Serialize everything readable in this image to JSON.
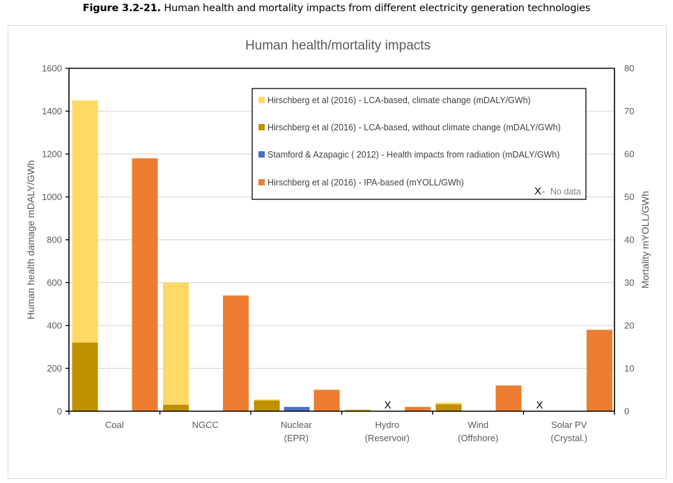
{
  "caption": {
    "bold": "Figure 3.2-21.",
    "text": " Human health and mortality impacts from different electricity generation technologies"
  },
  "chart_data": {
    "type": "bar",
    "title": "Human health/mortality impacts",
    "categories": [
      {
        "line1": "Coal",
        "line2": ""
      },
      {
        "line1": "NGCC",
        "line2": ""
      },
      {
        "line1": "Nuclear",
        "line2": "(EPR)"
      },
      {
        "line1": "Hydro",
        "line2": "(Reservoir)"
      },
      {
        "line1": "Wind",
        "line2": "(Offshore)"
      },
      {
        "line1": "Solar PV",
        "line2": "(Crystal.)"
      }
    ],
    "ylabel_left": "Human health damage mDALY/GWh",
    "ylabel_right": "Mortality mYOLL/GWh",
    "ylim_left": [
      0,
      1600
    ],
    "yticks_left": [
      0,
      200,
      400,
      600,
      800,
      1000,
      1200,
      1400,
      1600
    ],
    "ylim_right": [
      0,
      80
    ],
    "yticks_right": [
      0,
      10,
      20,
      30,
      40,
      50,
      60,
      70,
      80
    ],
    "grid": true,
    "legend_position": "top-right (inside plot)",
    "series": [
      {
        "name": "Hirschberg et al (2016) - LCA-based, climate change (mDALY/GWh)",
        "color": "#FFD966",
        "axis": "left",
        "slot": 0,
        "values": [
          1450,
          600,
          55,
          8,
          40,
          null
        ]
      },
      {
        "name": "Hirschberg et al (2016) - LCA-based, without climate change (mDALY/GWh)",
        "color": "#BF9000",
        "axis": "left",
        "slot": 0,
        "values": [
          320,
          30,
          50,
          5,
          32,
          null
        ]
      },
      {
        "name": "Stamford & Azapagic ( 2012) - Health impacts from radiation (mDALY/GWh)",
        "color": "#4472C4",
        "axis": "left",
        "slot": 1,
        "values": [
          null,
          null,
          20,
          null,
          null,
          null
        ]
      },
      {
        "name": "Hirschberg et al (2016) - IPA-based (mYOLL/GWh)",
        "color": "#ED7D31",
        "axis": "right",
        "slot": 2,
        "values": [
          59,
          27,
          5,
          1,
          6,
          19
        ]
      }
    ],
    "annotations": [
      {
        "category": "Hydro (Reservoir)",
        "slot": 1,
        "text": "X"
      },
      {
        "category": "Solar PV (Crystal.)",
        "slot": 0,
        "text": "X"
      }
    ],
    "nodata_note": {
      "symbol": "X",
      "separator": " - ",
      "label": "No data"
    }
  }
}
